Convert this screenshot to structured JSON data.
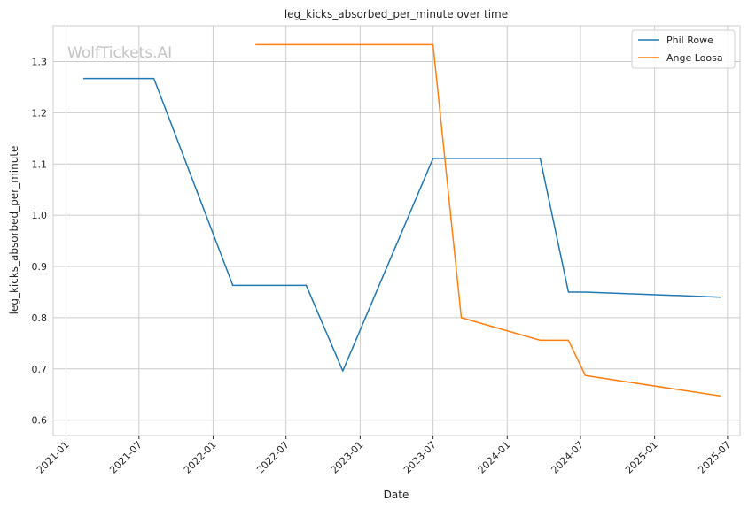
{
  "chart_data": {
    "type": "line",
    "title": "leg_kicks_absorbed_per_minute over time",
    "xlabel": "Date",
    "ylabel": "leg_kicks_absorbed_per_minute",
    "watermark": "WolfTickets.AI",
    "grid": true,
    "legend_position": "top-right",
    "xlim": [
      "2020-11-30",
      "2025-08-01"
    ],
    "ylim": [
      0.57,
      1.37
    ],
    "x_ticks": [
      "2021-01",
      "2021-07",
      "2022-01",
      "2022-07",
      "2023-01",
      "2023-07",
      "2024-01",
      "2024-07",
      "2025-01",
      "2025-07"
    ],
    "y_ticks": [
      "0.6",
      "0.7",
      "0.8",
      "0.9",
      "1.0",
      "1.1",
      "1.2",
      "1.3"
    ],
    "series": [
      {
        "name": "Phil Rowe",
        "color": "#1f77b4",
        "x": [
          "2021-02-13",
          "2021-08-07",
          "2022-02-19",
          "2022-08-20",
          "2022-11-19",
          "2023-07-01",
          "2024-03-23",
          "2024-06-01",
          "2024-07-13",
          "2025-06-14"
        ],
        "values": [
          1.267,
          1.267,
          0.863,
          0.863,
          0.696,
          1.111,
          1.111,
          0.85,
          0.85,
          0.84
        ]
      },
      {
        "name": "Ange Loosa",
        "color": "#ff7f0e",
        "x": [
          "2022-04-16",
          "2023-07-01",
          "2023-09-09",
          "2024-03-23",
          "2024-06-01",
          "2024-07-13",
          "2025-06-14"
        ],
        "values": [
          1.333,
          1.333,
          0.8,
          0.756,
          0.756,
          0.687,
          0.647
        ]
      }
    ]
  }
}
